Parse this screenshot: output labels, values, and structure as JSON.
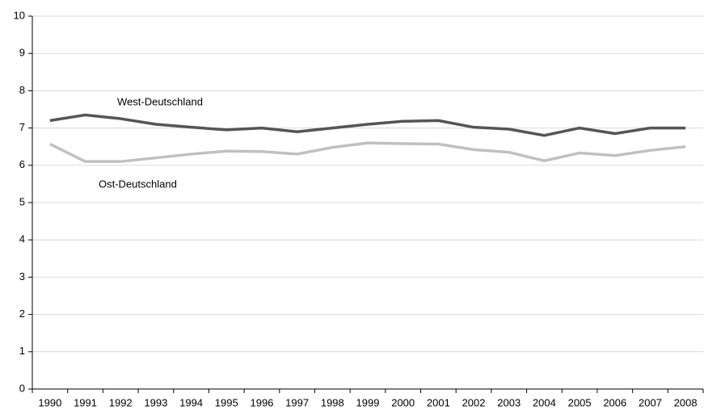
{
  "chart_data": {
    "type": "line",
    "categories": [
      "1990",
      "1991",
      "1992",
      "1993",
      "1994",
      "1995",
      "1996",
      "1997",
      "1998",
      "1999",
      "2000",
      "2001",
      "2002",
      "2003",
      "2004",
      "2005",
      "2006",
      "2007",
      "2008"
    ],
    "series": [
      {
        "name": "West-Deutschland",
        "color": "#555555",
        "values": [
          7.2,
          7.35,
          7.25,
          7.1,
          7.02,
          6.95,
          7.0,
          6.9,
          7.0,
          7.1,
          7.18,
          7.2,
          7.02,
          6.97,
          6.8,
          7.0,
          6.85,
          7.0,
          7.0
        ]
      },
      {
        "name": "Ost-Deutschland",
        "color": "#c0c0c0",
        "values": [
          6.57,
          6.1,
          6.1,
          6.2,
          6.3,
          6.38,
          6.37,
          6.3,
          6.48,
          6.6,
          6.58,
          6.57,
          6.42,
          6.35,
          6.12,
          6.33,
          6.26,
          6.4,
          6.5
        ]
      }
    ],
    "ylim": [
      0,
      10
    ],
    "yticks": [
      0,
      1,
      2,
      3,
      4,
      5,
      6,
      7,
      8,
      9,
      10
    ],
    "grid": true
  }
}
